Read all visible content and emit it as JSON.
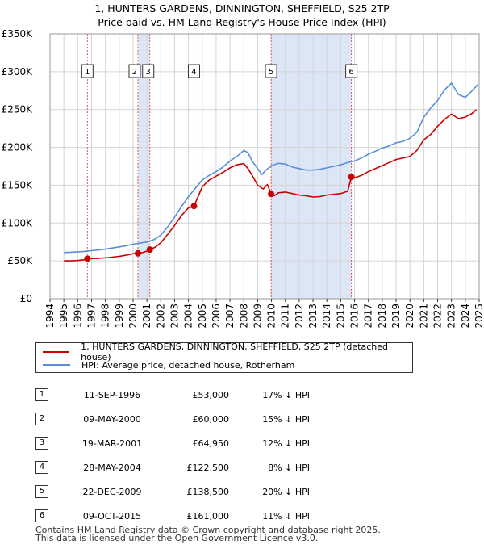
{
  "title": {
    "line1": "1, HUNTERS GARDENS, DINNINGTON, SHEFFIELD, S25 2TP",
    "line2": "Price paid vs. HM Land Registry's House Price Index (HPI)"
  },
  "chart_data": {
    "type": "line",
    "title": "1, HUNTERS GARDENS, DINNINGTON, SHEFFIELD, S25 2TP — Price paid vs. HM Land Registry's House Price Index (HPI)",
    "xlabel": "",
    "ylabel": "",
    "xlim": [
      1994,
      2025
    ],
    "ylim": [
      0,
      350000
    ],
    "x_ticks": [
      "1994",
      "1995",
      "1996",
      "1997",
      "1998",
      "1999",
      "2000",
      "2001",
      "2002",
      "2003",
      "2004",
      "2005",
      "2006",
      "2007",
      "2008",
      "2009",
      "2010",
      "2011",
      "2012",
      "2013",
      "2014",
      "2015",
      "2016",
      "2017",
      "2018",
      "2019",
      "2020",
      "2021",
      "2022",
      "2023",
      "2024",
      "2025"
    ],
    "y_ticks": [
      {
        "value": 0,
        "label": "£0"
      },
      {
        "value": 50000,
        "label": "£50K"
      },
      {
        "value": 100000,
        "label": "£100K"
      },
      {
        "value": 150000,
        "label": "£150K"
      },
      {
        "value": 200000,
        "label": "£200K"
      },
      {
        "value": 250000,
        "label": "£250K"
      },
      {
        "value": 300000,
        "label": "£300K"
      },
      {
        "value": 350000,
        "label": "£350K"
      }
    ],
    "grid": true,
    "shaded_spans": [
      [
        2000.35,
        2001.21
      ],
      [
        2009.97,
        2015.77
      ]
    ],
    "series": [
      {
        "name": "1, HUNTERS GARDENS, DINNINGTON, SHEFFIELD, S25 2TP (detached house)",
        "color": "#cc0000",
        "x": [
          1995.0,
          1995.5,
          1996.0,
          1996.5,
          1996.7,
          1997.0,
          1997.5,
          1998.0,
          1998.5,
          1999.0,
          1999.5,
          2000.0,
          2000.35,
          2000.7,
          2001.0,
          2001.21,
          2001.6,
          2002.0,
          2002.5,
          2003.0,
          2003.5,
          2004.0,
          2004.4,
          2004.7,
          2005.0,
          2005.5,
          2006.0,
          2006.5,
          2007.0,
          2007.5,
          2007.8,
          2008.0,
          2008.3,
          2008.6,
          2009.0,
          2009.4,
          2009.7,
          2009.97,
          2010.2,
          2010.5,
          2011.0,
          2011.5,
          2012.0,
          2012.5,
          2013.0,
          2013.5,
          2014.0,
          2014.5,
          2015.0,
          2015.5,
          2015.77,
          2016.0,
          2016.5,
          2017.0,
          2017.5,
          2018.0,
          2018.5,
          2019.0,
          2019.5,
          2020.0,
          2020.5,
          2021.0,
          2021.5,
          2022.0,
          2022.5,
          2023.0,
          2023.5,
          2024.0,
          2024.5,
          2024.8
        ],
        "values": [
          50000,
          50000,
          50500,
          51500,
          53000,
          53000,
          53500,
          54000,
          55000,
          56000,
          57500,
          59500,
          60000,
          61000,
          63000,
          64950,
          68000,
          74000,
          85000,
          97000,
          110000,
          120000,
          122500,
          135000,
          148000,
          157000,
          162000,
          167000,
          173000,
          177000,
          178000,
          178500,
          172000,
          163000,
          150000,
          145000,
          151000,
          138500,
          136000,
          140000,
          141000,
          139000,
          137000,
          136000,
          134500,
          135000,
          137000,
          138000,
          139000,
          142000,
          161000,
          160000,
          163000,
          168000,
          172000,
          176000,
          180000,
          184000,
          186000,
          188000,
          196000,
          210000,
          217000,
          228000,
          237000,
          244000,
          238000,
          240000,
          245000,
          250000
        ]
      },
      {
        "name": "HPI: Average price, detached house, Rotherham",
        "color": "#5b8fd4",
        "x": [
          1995.0,
          1995.5,
          1996.0,
          1996.5,
          1997.0,
          1997.5,
          1998.0,
          1998.5,
          1999.0,
          1999.5,
          2000.0,
          2000.5,
          2001.0,
          2001.5,
          2002.0,
          2002.5,
          2003.0,
          2003.5,
          2004.0,
          2004.5,
          2005.0,
          2005.5,
          2006.0,
          2006.5,
          2007.0,
          2007.5,
          2008.0,
          2008.3,
          2008.6,
          2009.0,
          2009.3,
          2009.6,
          2010.0,
          2010.5,
          2011.0,
          2011.5,
          2012.0,
          2012.5,
          2013.0,
          2013.5,
          2014.0,
          2014.5,
          2015.0,
          2015.5,
          2016.0,
          2016.5,
          2017.0,
          2017.5,
          2018.0,
          2018.5,
          2019.0,
          2019.5,
          2020.0,
          2020.5,
          2021.0,
          2021.5,
          2022.0,
          2022.5,
          2023.0,
          2023.5,
          2024.0,
          2024.5,
          2024.9
        ],
        "values": [
          61000,
          61500,
          62000,
          62500,
          63500,
          64500,
          65500,
          67000,
          68500,
          70000,
          72000,
          73500,
          75000,
          78000,
          84000,
          95000,
          108000,
          122000,
          135000,
          146000,
          157000,
          163000,
          168000,
          174000,
          182000,
          188000,
          196000,
          193000,
          182000,
          172000,
          164000,
          170000,
          176000,
          179000,
          178000,
          174000,
          172000,
          170000,
          170000,
          171000,
          173000,
          175000,
          177000,
          180000,
          182000,
          186000,
          191000,
          195000,
          199000,
          202000,
          206000,
          208000,
          212000,
          220000,
          240000,
          252000,
          262000,
          276000,
          285000,
          270000,
          266000,
          275000,
          283000
        ]
      }
    ],
    "annotations": [
      {
        "label": "1",
        "x": 1996.7,
        "y": 53000
      },
      {
        "label": "2",
        "x": 2000.35,
        "y": 60000
      },
      {
        "label": "3",
        "x": 2001.21,
        "y": 64950
      },
      {
        "label": "4",
        "x": 2004.4,
        "y": 122500
      },
      {
        "label": "5",
        "x": 2009.97,
        "y": 138500
      },
      {
        "label": "6",
        "x": 2015.77,
        "y": 161000
      }
    ]
  },
  "legend": {
    "property": "1, HUNTERS GARDENS, DINNINGTON, SHEFFIELD, S25 2TP (detached house)",
    "hpi": "HPI: Average price, detached house, Rotherham"
  },
  "sales": [
    {
      "num": "1",
      "date": "11-SEP-1996",
      "price": "£53,000",
      "hpi": "17% ↓ HPI"
    },
    {
      "num": "2",
      "date": "09-MAY-2000",
      "price": "£60,000",
      "hpi": "15% ↓ HPI"
    },
    {
      "num": "3",
      "date": "19-MAR-2001",
      "price": "£64,950",
      "hpi": "12% ↓ HPI"
    },
    {
      "num": "4",
      "date": "28-MAY-2004",
      "price": "£122,500",
      "hpi": "8% ↓ HPI"
    },
    {
      "num": "5",
      "date": "22-DEC-2009",
      "price": "£138,500",
      "hpi": "20% ↓ HPI"
    },
    {
      "num": "6",
      "date": "09-OCT-2015",
      "price": "£161,000",
      "hpi": "11% ↓ HPI"
    }
  ],
  "footer": {
    "line1": "Contains HM Land Registry data © Crown copyright and database right 2025.",
    "line2": "This data is licensed under the Open Government Licence v3.0."
  }
}
